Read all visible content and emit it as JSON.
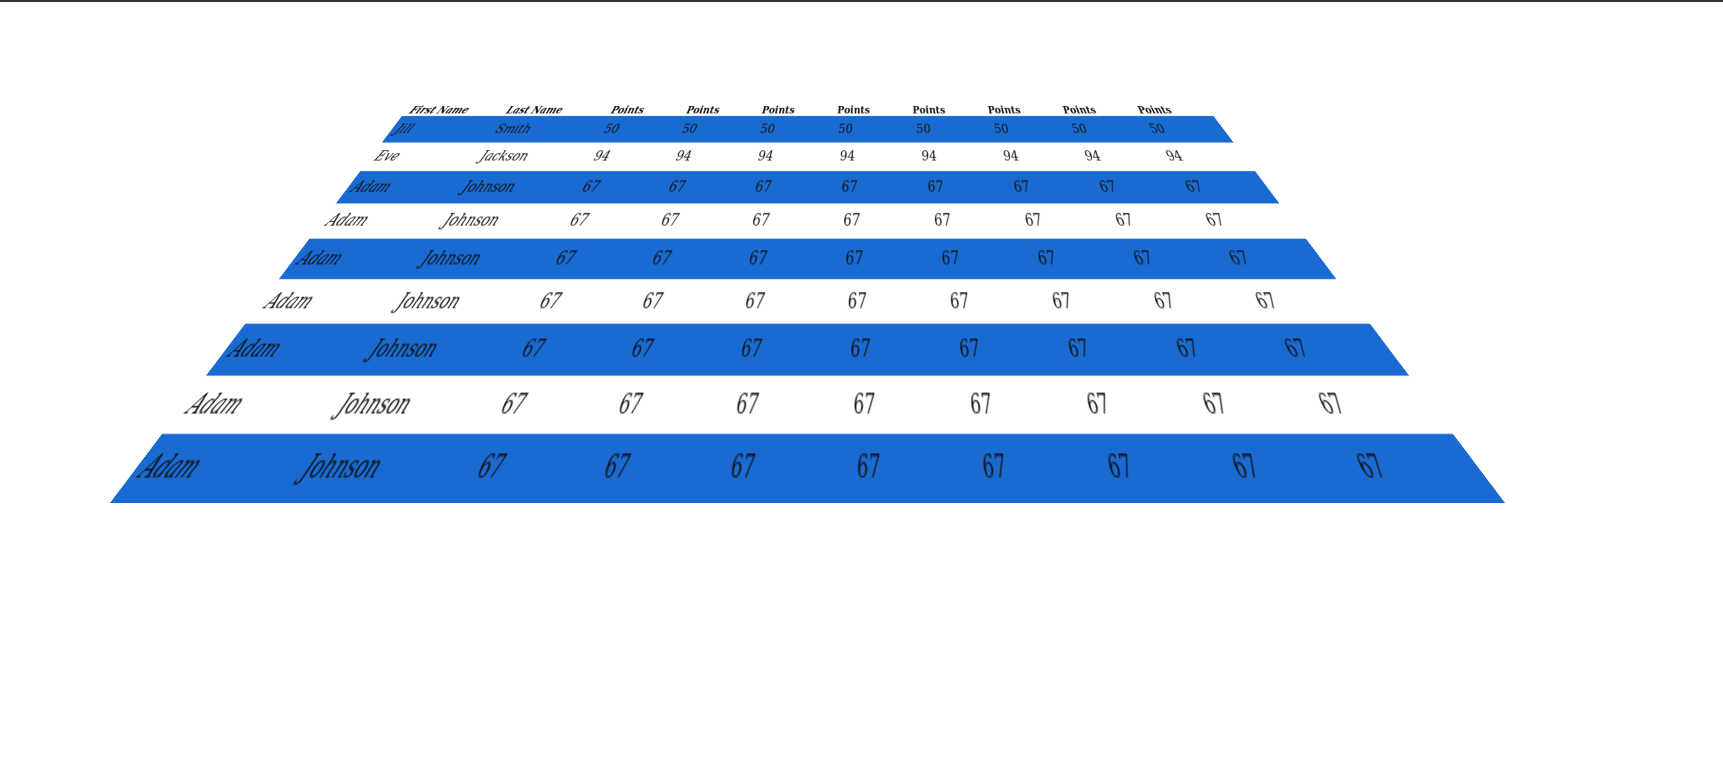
{
  "colors": {
    "stripe": "#1a6bd1",
    "background": "#ffffff",
    "text": "#111111"
  },
  "table": {
    "headers": [
      "First Name",
      "Last Name",
      "Points",
      "Points",
      "Points",
      "Points",
      "Points",
      "Points",
      "Points",
      "Points"
    ],
    "rows": [
      [
        "Jill",
        "Smith",
        "50",
        "50",
        "50",
        "50",
        "50",
        "50",
        "50",
        "50"
      ],
      [
        "Eve",
        "Jackson",
        "94",
        "94",
        "94",
        "94",
        "94",
        "94",
        "94",
        "94"
      ],
      [
        "Adam",
        "Johnson",
        "67",
        "67",
        "67",
        "67",
        "67",
        "67",
        "67",
        "67"
      ],
      [
        "Adam",
        "Johnson",
        "67",
        "67",
        "67",
        "67",
        "67",
        "67",
        "67",
        "67"
      ],
      [
        "Adam",
        "Johnson",
        "67",
        "67",
        "67",
        "67",
        "67",
        "67",
        "67",
        "67"
      ],
      [
        "Adam",
        "Johnson",
        "67",
        "67",
        "67",
        "67",
        "67",
        "67",
        "67",
        "67"
      ],
      [
        "Adam",
        "Johnson",
        "67",
        "67",
        "67",
        "67",
        "67",
        "67",
        "67",
        "67"
      ],
      [
        "Adam",
        "Johnson",
        "67",
        "67",
        "67",
        "67",
        "67",
        "67",
        "67",
        "67"
      ],
      [
        "Adam",
        "Johnson",
        "67",
        "67",
        "67",
        "67",
        "67",
        "67",
        "67",
        "67"
      ]
    ]
  }
}
